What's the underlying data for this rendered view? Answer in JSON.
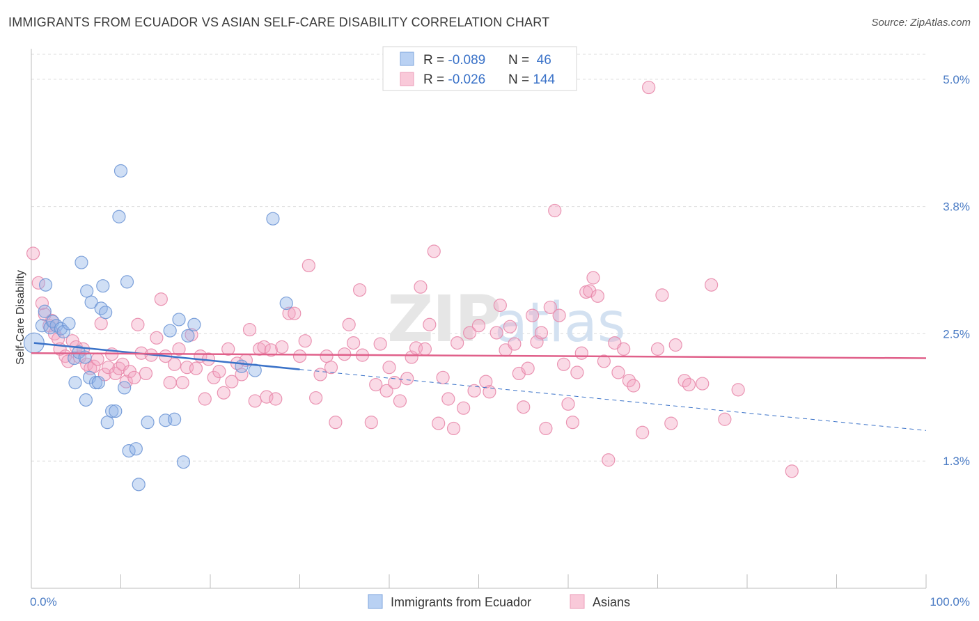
{
  "chart_data": {
    "type": "scatter",
    "title": "IMMIGRANTS FROM ECUADOR VS ASIAN SELF-CARE DISABILITY CORRELATION CHART",
    "source": "Source: ZipAtlas.com",
    "ylabel": "Self-Care Disability",
    "xlim": [
      0,
      100
    ],
    "ylim": [
      0.0,
      5.3
    ],
    "x_tick_labels": [
      "0.0%",
      "100.0%"
    ],
    "y_ticks": [
      {
        "value": 1.25,
        "label": "1.3%"
      },
      {
        "value": 2.5,
        "label": "2.5%"
      },
      {
        "value": 3.75,
        "label": "3.8%"
      },
      {
        "value": 5.0,
        "label": "5.0%"
      }
    ],
    "watermark": {
      "part1": "ZIP",
      "part2": "atlas"
    },
    "legend": {
      "rows": [
        {
          "r_label": "R = ",
          "r_value": "-0.089",
          "n_label": "N = ",
          "n_value": " 46"
        },
        {
          "r_label": "R = ",
          "r_value": "-0.026",
          "n_label": "N = ",
          "n_value": "144"
        }
      ]
    },
    "series": [
      {
        "name": "Immigrants from Ecuador",
        "color": "#8fb3e8",
        "edge": "#6f97d6",
        "line_color": "#3a72c8",
        "trend": {
          "x0": 0.3,
          "y0": 2.41,
          "x1": 30,
          "y1": 2.15,
          "dash_to_x": 100,
          "dash_to_y": 1.55
        },
        "points": [
          [
            0.3,
            2.41,
            1.6
          ],
          [
            1.2,
            2.58,
            1
          ],
          [
            1.5,
            2.72,
            1
          ],
          [
            1.6,
            2.98,
            1
          ],
          [
            2.1,
            2.56,
            1
          ],
          [
            2.4,
            2.62,
            1
          ],
          [
            2.8,
            2.58,
            1
          ],
          [
            3.3,
            2.55,
            1
          ],
          [
            3.6,
            2.52,
            1
          ],
          [
            4.2,
            2.6,
            1
          ],
          [
            4.8,
            2.26,
            1
          ],
          [
            4.9,
            2.02,
            1
          ],
          [
            5.3,
            2.32,
            1
          ],
          [
            5.6,
            3.2,
            1
          ],
          [
            6.0,
            2.27,
            1
          ],
          [
            6.1,
            1.85,
            1
          ],
          [
            6.2,
            2.92,
            1
          ],
          [
            6.5,
            2.07,
            1
          ],
          [
            6.7,
            2.81,
            1
          ],
          [
            7.2,
            2.02,
            1
          ],
          [
            7.5,
            2.02,
            1
          ],
          [
            7.8,
            2.75,
            1
          ],
          [
            8.0,
            2.97,
            1
          ],
          [
            8.3,
            2.71,
            1
          ],
          [
            8.5,
            1.63,
            1
          ],
          [
            9.0,
            1.74,
            1
          ],
          [
            9.4,
            1.74,
            1
          ],
          [
            9.8,
            3.65,
            1
          ],
          [
            10.0,
            4.1,
            1
          ],
          [
            10.4,
            1.97,
            1
          ],
          [
            10.7,
            3.01,
            1
          ],
          [
            10.9,
            1.35,
            1
          ],
          [
            11.7,
            1.37,
            1
          ],
          [
            12.0,
            1.02,
            1
          ],
          [
            13.0,
            1.63,
            1
          ],
          [
            15.0,
            1.65,
            1
          ],
          [
            15.5,
            2.53,
            1
          ],
          [
            16.0,
            1.66,
            1
          ],
          [
            16.5,
            2.64,
            1
          ],
          [
            17.0,
            1.24,
            1
          ],
          [
            17.5,
            2.48,
            1
          ],
          [
            18.2,
            2.59,
            1
          ],
          [
            23.5,
            2.18,
            1
          ],
          [
            25.0,
            2.14,
            1
          ],
          [
            27.0,
            3.63,
            1
          ],
          [
            28.5,
            2.8,
            1
          ]
        ]
      },
      {
        "name": "Asians",
        "color": "#f4a8c3",
        "edge": "#e88aab",
        "line_color": "#e0608a",
        "trend": {
          "x0": 0,
          "y0": 2.31,
          "x1": 100,
          "y1": 2.26
        },
        "points": [
          [
            0.2,
            3.29,
            1
          ],
          [
            0.8,
            3.0,
            1
          ],
          [
            1.2,
            2.8,
            1
          ],
          [
            1.5,
            2.69,
            1
          ],
          [
            2.0,
            2.58,
            1
          ],
          [
            2.3,
            2.63,
            1
          ],
          [
            2.6,
            2.5,
            1
          ],
          [
            3.0,
            2.45,
            1
          ],
          [
            3.2,
            2.35,
            1
          ],
          [
            3.8,
            2.28,
            1
          ],
          [
            4.1,
            2.23,
            1
          ],
          [
            4.6,
            2.43,
            1
          ],
          [
            5.0,
            2.37,
            1
          ],
          [
            5.4,
            2.27,
            1
          ],
          [
            5.8,
            2.35,
            1
          ],
          [
            6.2,
            2.2,
            1
          ],
          [
            6.6,
            2.16,
            1
          ],
          [
            7.0,
            2.18,
            1
          ],
          [
            7.4,
            2.25,
            1
          ],
          [
            7.8,
            2.6,
            1
          ],
          [
            8.2,
            2.1,
            1
          ],
          [
            8.6,
            2.17,
            1
          ],
          [
            9.0,
            2.3,
            1
          ],
          [
            9.4,
            2.11,
            1
          ],
          [
            9.8,
            2.16,
            1
          ],
          [
            10.2,
            2.2,
            1
          ],
          [
            10.6,
            2.03,
            1
          ],
          [
            11.0,
            2.13,
            1
          ],
          [
            11.5,
            2.07,
            1
          ],
          [
            11.9,
            2.59,
            1
          ],
          [
            12.3,
            2.31,
            1
          ],
          [
            12.8,
            2.11,
            1
          ],
          [
            13.4,
            2.29,
            1
          ],
          [
            14.0,
            2.46,
            1
          ],
          [
            14.5,
            2.84,
            1
          ],
          [
            15.0,
            2.28,
            1
          ],
          [
            15.5,
            2.02,
            1
          ],
          [
            16.0,
            2.2,
            1
          ],
          [
            16.5,
            2.35,
            1
          ],
          [
            16.9,
            2.02,
            1
          ],
          [
            17.4,
            2.17,
            1
          ],
          [
            17.9,
            2.49,
            1
          ],
          [
            18.4,
            2.16,
            1
          ],
          [
            18.9,
            2.28,
            1
          ],
          [
            19.4,
            1.86,
            1
          ],
          [
            19.8,
            2.25,
            1
          ],
          [
            20.4,
            2.07,
            1
          ],
          [
            21.0,
            2.13,
            1
          ],
          [
            21.5,
            1.92,
            1
          ],
          [
            22.0,
            2.35,
            1
          ],
          [
            22.4,
            2.03,
            1
          ],
          [
            23.0,
            2.21,
            1
          ],
          [
            23.5,
            2.1,
            1
          ],
          [
            24.0,
            2.24,
            1
          ],
          [
            24.4,
            2.54,
            1
          ],
          [
            25.0,
            1.84,
            1
          ],
          [
            25.5,
            2.35,
            1
          ],
          [
            26.0,
            2.37,
            1
          ],
          [
            26.3,
            1.88,
            1
          ],
          [
            26.8,
            2.34,
            1
          ],
          [
            27.3,
            1.86,
            1
          ],
          [
            28.0,
            2.37,
            1
          ],
          [
            28.8,
            2.7,
            1
          ],
          [
            29.4,
            2.7,
            1
          ],
          [
            30.0,
            2.28,
            1
          ],
          [
            30.6,
            2.43,
            1
          ],
          [
            31.0,
            3.17,
            1
          ],
          [
            31.8,
            1.87,
            1
          ],
          [
            32.3,
            2.1,
            1
          ],
          [
            33.0,
            2.28,
            1
          ],
          [
            33.5,
            2.17,
            1
          ],
          [
            34.0,
            1.63,
            1
          ],
          [
            35.0,
            2.3,
            1
          ],
          [
            35.5,
            2.59,
            1
          ],
          [
            36.0,
            2.41,
            1
          ],
          [
            36.7,
            2.93,
            1
          ],
          [
            37.0,
            2.29,
            1
          ],
          [
            38.0,
            1.63,
            1
          ],
          [
            38.5,
            2.0,
            1
          ],
          [
            39.0,
            2.4,
            1
          ],
          [
            39.7,
            1.94,
            1
          ],
          [
            40.0,
            2.17,
            1
          ],
          [
            40.6,
            2.02,
            1
          ],
          [
            41.2,
            1.84,
            1
          ],
          [
            42.0,
            2.06,
            1
          ],
          [
            42.5,
            2.27,
            1
          ],
          [
            43.0,
            2.36,
            1
          ],
          [
            43.5,
            2.96,
            1
          ],
          [
            44.0,
            2.35,
            1
          ],
          [
            44.5,
            2.59,
            1
          ],
          [
            45.0,
            3.31,
            1
          ],
          [
            45.5,
            1.62,
            1
          ],
          [
            46.0,
            2.07,
            1
          ],
          [
            46.6,
            1.86,
            1
          ],
          [
            47.2,
            1.57,
            1
          ],
          [
            47.6,
            2.41,
            1
          ],
          [
            48.3,
            1.77,
            1
          ],
          [
            49.0,
            2.51,
            1
          ],
          [
            49.5,
            1.94,
            1
          ],
          [
            50.0,
            2.58,
            1
          ],
          [
            50.8,
            2.03,
            1
          ],
          [
            51.2,
            1.93,
            1
          ],
          [
            52.0,
            2.51,
            1
          ],
          [
            52.4,
            2.78,
            1
          ],
          [
            53.0,
            2.34,
            1
          ],
          [
            53.5,
            2.57,
            1
          ],
          [
            54.0,
            2.4,
            1
          ],
          [
            54.5,
            2.11,
            1
          ],
          [
            55.0,
            1.78,
            1
          ],
          [
            55.5,
            2.16,
            1
          ],
          [
            56.0,
            2.68,
            1
          ],
          [
            56.5,
            2.42,
            1
          ],
          [
            57.0,
            2.51,
            1
          ],
          [
            57.5,
            1.57,
            1
          ],
          [
            58.0,
            2.76,
            1
          ],
          [
            58.5,
            3.71,
            1
          ],
          [
            59.0,
            2.68,
            1
          ],
          [
            59.5,
            2.2,
            1
          ],
          [
            60.0,
            1.81,
            1
          ],
          [
            60.5,
            1.63,
            1
          ],
          [
            61.0,
            2.12,
            1
          ],
          [
            61.5,
            2.31,
            1
          ],
          [
            62.0,
            2.91,
            1
          ],
          [
            62.4,
            2.92,
            1
          ],
          [
            62.8,
            3.05,
            1
          ],
          [
            63.3,
            2.87,
            1
          ],
          [
            64.0,
            2.23,
            1
          ],
          [
            64.5,
            1.26,
            1
          ],
          [
            65.2,
            2.41,
            1
          ],
          [
            65.6,
            2.12,
            1
          ],
          [
            66.2,
            2.35,
            1
          ],
          [
            66.8,
            2.04,
            1
          ],
          [
            67.3,
            1.99,
            1
          ],
          [
            68.3,
            1.53,
            1
          ],
          [
            69.0,
            4.92,
            1
          ],
          [
            70.0,
            2.35,
            1
          ],
          [
            70.5,
            2.88,
            1
          ],
          [
            71.5,
            1.62,
            1
          ],
          [
            72.0,
            2.39,
            1
          ],
          [
            73.0,
            2.04,
            1
          ],
          [
            73.5,
            2.0,
            1
          ],
          [
            75.0,
            2.01,
            1
          ],
          [
            76.0,
            2.98,
            1
          ],
          [
            77.5,
            1.66,
            1
          ],
          [
            79.0,
            1.95,
            1
          ],
          [
            85.0,
            1.15,
            1
          ]
        ]
      }
    ]
  },
  "bottom_legend": [
    {
      "label": "Immigrants from Ecuador",
      "color": "#b9d1f3",
      "edge": "#7fa6de"
    },
    {
      "label": "Asians",
      "color": "#f9c9d9",
      "edge": "#ec9db9"
    }
  ]
}
